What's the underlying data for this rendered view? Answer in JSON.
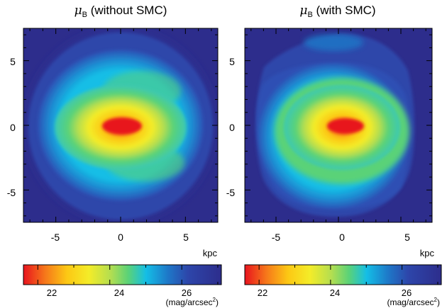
{
  "figure": {
    "panels": [
      {
        "title_symbol": "μ",
        "title_sub": "B",
        "title_text": " (without SMC)",
        "x_ticks": [
          -5,
          0,
          5
        ],
        "y_ticks": [
          5,
          0,
          -5
        ],
        "x_unit": "kpc",
        "colorbar_ticks": [
          22,
          24,
          26
        ],
        "colorbar_unit_prefix": "(mag/arcsec",
        "colorbar_unit_sup": "2",
        "colorbar_unit_suffix": ")"
      },
      {
        "title_symbol": "μ",
        "title_sub": "B",
        "title_text": " (with SMC)",
        "x_ticks": [
          -5,
          0,
          5
        ],
        "y_ticks": [
          5,
          0,
          -5
        ],
        "x_unit": "kpc",
        "colorbar_ticks": [
          22,
          24,
          26
        ],
        "colorbar_unit_prefix": "(mag/arcsec",
        "colorbar_unit_sup": "2",
        "colorbar_unit_suffix": ")"
      }
    ],
    "axis_range_kpc": [
      -7.5,
      7.5
    ],
    "colorbar_range_mag": [
      21.6,
      27.1
    ],
    "colormap": [
      "#e8141e",
      "#f6781a",
      "#fcc814",
      "#f4ec28",
      "#b4de50",
      "#5ad278",
      "#14bee6",
      "#1e78c8",
      "#2d46aa",
      "#2d2d8c"
    ]
  }
}
